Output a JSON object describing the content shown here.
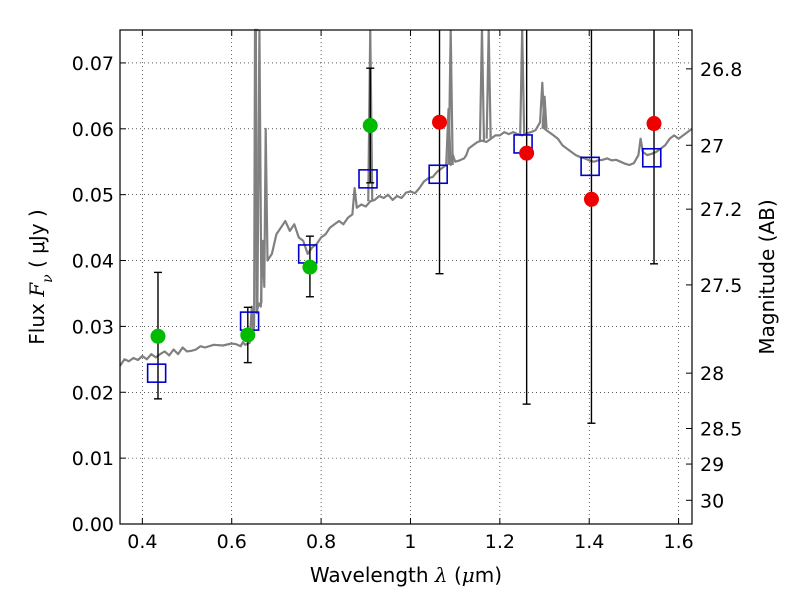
{
  "chart_data": {
    "type": "scatter",
    "xlabel_parts": {
      "prefix": "Wavelength ",
      "var": "λ",
      "unit_open": " (",
      "unit_mu": "μ",
      "unit_rest": "m)"
    },
    "ylabel_parts": {
      "prefix": "Flux ",
      "var": "F",
      "sub": "ν",
      "unit": " ( μJy )"
    },
    "y2label": "Magnitude (AB)",
    "xlim": [
      0.35,
      1.63
    ],
    "ylim": [
      0.0,
      0.075
    ],
    "grid": true,
    "xticks": [
      0.4,
      0.6,
      0.8,
      1.0,
      1.2,
      1.4,
      1.6
    ],
    "xtick_labels": [
      "0.4",
      "0.6",
      "0.8",
      "1",
      "1.2",
      "1.4",
      "1.6"
    ],
    "yticks": [
      0.0,
      0.01,
      0.02,
      0.03,
      0.04,
      0.05,
      0.06,
      0.07
    ],
    "ytick_labels": [
      "0.00",
      "0.01",
      "0.02",
      "0.03",
      "0.04",
      "0.05",
      "0.06",
      "0.07"
    ],
    "magnitude_ticks": [
      {
        "label": "26.8",
        "flux": 0.0691
      },
      {
        "label": "27",
        "flux": 0.0575
      },
      {
        "label": "27.2",
        "flux": 0.0478
      },
      {
        "label": "27.5",
        "flux": 0.0363
      },
      {
        "label": "28",
        "flux": 0.0229
      },
      {
        "label": "28.5",
        "flux": 0.0145
      },
      {
        "label": "29",
        "flux": 0.0091
      },
      {
        "label": "30",
        "flux": 0.0036
      }
    ],
    "colors": {
      "model": "#808080",
      "model_phot": "#0000cc",
      "detection": "#00bb00",
      "upper": "#ee0000",
      "errorbar": "#000000"
    },
    "series": [
      {
        "kind": "observed_detection",
        "points": [
          {
            "x": 0.435,
            "y": 0.0285,
            "ylo": 0.019,
            "yhi": 0.0382
          },
          {
            "x": 0.636,
            "y": 0.0287,
            "ylo": 0.0245,
            "yhi": 0.0329
          },
          {
            "x": 0.775,
            "y": 0.039,
            "ylo": 0.0345,
            "yhi": 0.0437
          },
          {
            "x": 0.91,
            "y": 0.0605,
            "ylo": 0.0518,
            "yhi": 0.0692
          }
        ]
      },
      {
        "kind": "observed_low_sn",
        "points": [
          {
            "x": 1.065,
            "y": 0.061,
            "ylo": 0.038,
            "yhi": 0.075
          },
          {
            "x": 1.26,
            "y": 0.0563,
            "ylo": 0.0182,
            "yhi": 0.075
          },
          {
            "x": 1.405,
            "y": 0.0493,
            "ylo": 0.0153,
            "yhi": 0.075
          },
          {
            "x": 1.545,
            "y": 0.0608,
            "ylo": 0.0395,
            "yhi": 0.075
          }
        ]
      },
      {
        "kind": "model_photometry",
        "points": [
          {
            "x": 0.432,
            "y": 0.0229
          },
          {
            "x": 0.64,
            "y": 0.0308
          },
          {
            "x": 0.77,
            "y": 0.041
          },
          {
            "x": 0.905,
            "y": 0.0524
          },
          {
            "x": 1.062,
            "y": 0.0531
          },
          {
            "x": 1.252,
            "y": 0.0577
          },
          {
            "x": 1.402,
            "y": 0.0543
          },
          {
            "x": 1.54,
            "y": 0.0556
          }
        ]
      },
      {
        "kind": "model_spectrum",
        "points": [
          [
            0.35,
            0.024
          ],
          [
            0.36,
            0.025
          ],
          [
            0.37,
            0.0247
          ],
          [
            0.38,
            0.0252
          ],
          [
            0.39,
            0.0249
          ],
          [
            0.4,
            0.0255
          ],
          [
            0.41,
            0.025
          ],
          [
            0.42,
            0.0258
          ],
          [
            0.43,
            0.0253
          ],
          [
            0.44,
            0.0258
          ],
          [
            0.45,
            0.0262
          ],
          [
            0.46,
            0.0256
          ],
          [
            0.47,
            0.0265
          ],
          [
            0.48,
            0.0258
          ],
          [
            0.49,
            0.0268
          ],
          [
            0.5,
            0.0262
          ],
          [
            0.51,
            0.0263
          ],
          [
            0.52,
            0.0265
          ],
          [
            0.53,
            0.027
          ],
          [
            0.54,
            0.0268
          ],
          [
            0.56,
            0.0272
          ],
          [
            0.58,
            0.0271
          ],
          [
            0.6,
            0.0274
          ],
          [
            0.61,
            0.0273
          ],
          [
            0.62,
            0.027
          ],
          [
            0.625,
            0.0276
          ],
          [
            0.63,
            0.0272
          ],
          [
            0.64,
            0.0275
          ],
          [
            0.645,
            0.033
          ],
          [
            0.648,
            0.029
          ],
          [
            0.65,
            0.03
          ],
          [
            0.652,
            0.075
          ],
          [
            0.654,
            0.075
          ],
          [
            0.656,
            0.032
          ],
          [
            0.66,
            0.0335
          ],
          [
            0.665,
            0.033
          ],
          [
            0.67,
            0.043
          ],
          [
            0.673,
            0.036
          ],
          [
            0.676,
            0.06
          ],
          [
            0.68,
            0.04
          ],
          [
            0.69,
            0.041
          ],
          [
            0.7,
            0.044
          ],
          [
            0.71,
            0.045
          ],
          [
            0.72,
            0.046
          ],
          [
            0.73,
            0.0445
          ],
          [
            0.74,
            0.0455
          ],
          [
            0.75,
            0.0435
          ],
          [
            0.76,
            0.043
          ],
          [
            0.77,
            0.041
          ],
          [
            0.78,
            0.042
          ],
          [
            0.79,
            0.0425
          ],
          [
            0.8,
            0.0435
          ],
          [
            0.81,
            0.044
          ],
          [
            0.82,
            0.045
          ],
          [
            0.83,
            0.0455
          ],
          [
            0.84,
            0.046
          ],
          [
            0.85,
            0.0455
          ],
          [
            0.86,
            0.0465
          ],
          [
            0.87,
            0.047
          ],
          [
            0.875,
            0.051
          ],
          [
            0.88,
            0.048
          ],
          [
            0.89,
            0.0485
          ],
          [
            0.9,
            0.0482
          ],
          [
            0.91,
            0.049
          ],
          [
            0.92,
            0.0492
          ],
          [
            0.93,
            0.0498
          ],
          [
            0.94,
            0.0495
          ],
          [
            0.95,
            0.05
          ],
          [
            0.96,
            0.0492
          ],
          [
            0.97,
            0.0498
          ],
          [
            0.98,
            0.0495
          ],
          [
            0.99,
            0.0503
          ],
          [
            1.0,
            0.0505
          ],
          [
            1.01,
            0.0502
          ],
          [
            1.02,
            0.051
          ],
          [
            1.03,
            0.052
          ],
          [
            1.04,
            0.0525
          ],
          [
            1.05,
            0.0527
          ],
          [
            1.06,
            0.0535
          ],
          [
            1.07,
            0.054
          ],
          [
            1.08,
            0.0545
          ],
          [
            1.085,
            0.063
          ],
          [
            1.09,
            0.0545
          ],
          [
            1.095,
            0.056
          ],
          [
            1.1,
            0.055
          ],
          [
            1.11,
            0.0552
          ],
          [
            1.12,
            0.0555
          ],
          [
            1.125,
            0.056
          ],
          [
            1.13,
            0.057
          ],
          [
            1.14,
            0.0575
          ],
          [
            1.15,
            0.058
          ],
          [
            1.16,
            0.0582
          ],
          [
            1.17,
            0.058
          ],
          [
            1.18,
            0.0585
          ],
          [
            1.19,
            0.059
          ],
          [
            1.2,
            0.059
          ],
          [
            1.21,
            0.0595
          ],
          [
            1.22,
            0.0592
          ],
          [
            1.23,
            0.0595
          ],
          [
            1.24,
            0.0592
          ],
          [
            1.25,
            0.059
          ],
          [
            1.26,
            0.0593
          ],
          [
            1.27,
            0.0595
          ],
          [
            1.28,
            0.0598
          ],
          [
            1.29,
            0.061
          ],
          [
            1.295,
            0.067
          ],
          [
            1.3,
            0.06
          ],
          [
            1.31,
            0.0595
          ],
          [
            1.32,
            0.059
          ],
          [
            1.33,
            0.0585
          ],
          [
            1.34,
            0.0575
          ],
          [
            1.35,
            0.057
          ],
          [
            1.36,
            0.0565
          ],
          [
            1.37,
            0.056
          ],
          [
            1.38,
            0.0557
          ],
          [
            1.39,
            0.0555
          ],
          [
            1.4,
            0.0552
          ],
          [
            1.41,
            0.055
          ],
          [
            1.42,
            0.0552
          ],
          [
            1.43,
            0.0553
          ],
          [
            1.44,
            0.0555
          ],
          [
            1.45,
            0.0552
          ],
          [
            1.46,
            0.0553
          ],
          [
            1.47,
            0.055
          ],
          [
            1.48,
            0.0547
          ],
          [
            1.49,
            0.0545
          ],
          [
            1.5,
            0.0548
          ],
          [
            1.51,
            0.056
          ],
          [
            1.515,
            0.0585
          ],
          [
            1.52,
            0.0565
          ],
          [
            1.53,
            0.056
          ],
          [
            1.54,
            0.0562
          ],
          [
            1.55,
            0.0565
          ],
          [
            1.56,
            0.057
          ],
          [
            1.57,
            0.0575
          ],
          [
            1.58,
            0.0585
          ],
          [
            1.59,
            0.059
          ],
          [
            1.6,
            0.0585
          ],
          [
            1.61,
            0.059
          ],
          [
            1.62,
            0.0595
          ],
          [
            1.63,
            0.06
          ]
        ],
        "spikes": [
          {
            "x": 0.655,
            "peak": 0.075
          },
          {
            "x": 0.662,
            "peak": 0.075
          },
          {
            "x": 0.91,
            "peak": 0.075
          },
          {
            "x": 1.09,
            "peak": 0.075
          },
          {
            "x": 1.16,
            "peak": 0.075
          },
          {
            "x": 1.175,
            "peak": 0.075
          },
          {
            "x": 1.25,
            "peak": 0.075
          },
          {
            "x": 1.3,
            "peak": 0.065
          }
        ]
      }
    ]
  }
}
